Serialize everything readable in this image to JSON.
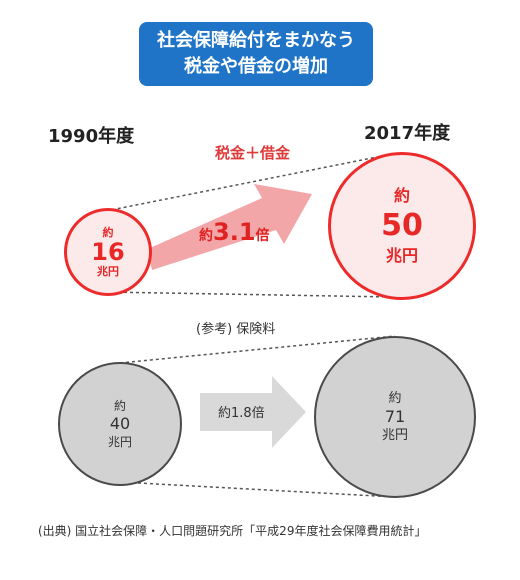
{
  "title": {
    "line1": "社会保障給付をまかなう",
    "line2": "税金や借金の増加"
  },
  "years": {
    "left": "1990年度",
    "right": "2017年度"
  },
  "tax_debt_label": "税金＋借金",
  "red": {
    "left": {
      "approx": "約",
      "value": "16",
      "unit": "兆円"
    },
    "right": {
      "approx": "約",
      "value": "50",
      "unit": "兆円"
    },
    "ratio": {
      "prefix": "約",
      "value": "3.1",
      "suffix": "倍"
    }
  },
  "reference_label": "(参考) 保険料",
  "gray": {
    "left": {
      "approx": "約",
      "value": "40",
      "unit": "兆円"
    },
    "right": {
      "approx": "約",
      "value": "71",
      "unit": "兆円"
    },
    "ratio": "約1.8倍"
  },
  "source": "(出典) 国立社会保障・人口問題研究所「平成29年度社会保障費用統計」",
  "colors": {
    "title_bg": "#1f74c7",
    "red": "#ee2b2b",
    "red_fill": "#fce9ea",
    "gray_fill": "#d2d2d2",
    "arrow_red": "#f3a6a8",
    "arrow_gray": "#d9d9d9"
  }
}
